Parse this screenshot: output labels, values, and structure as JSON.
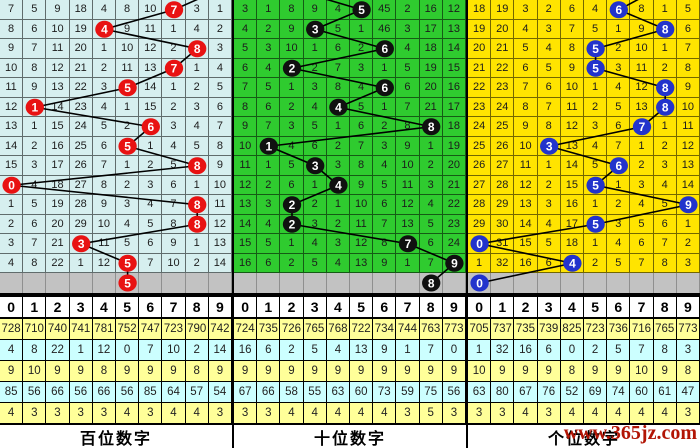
{
  "watermark": "www.365jz.com",
  "header_digits": [
    "0",
    "1",
    "2",
    "3",
    "4",
    "5",
    "6",
    "7",
    "8",
    "9"
  ],
  "colors": {
    "grid_line": "#000000",
    "gray_band": "#c2c2c2",
    "stats_yellow": "#ffff99",
    "stats_cyan": "#ccffff",
    "trend_line": "#000000",
    "circle_text": "#ffffff"
  },
  "chart_data": [
    {
      "type": "table",
      "title": "百位数字",
      "panel_id": "hundreds",
      "cell_bg": "#d6efef",
      "circle_color": "#e81212",
      "header": [
        "0",
        "1",
        "2",
        "3",
        "4",
        "5",
        "6",
        "7",
        "8",
        "9"
      ],
      "matrix": [
        [
          7,
          5,
          9,
          18,
          4,
          8,
          10,
          7,
          3,
          1
        ],
        [
          8,
          6,
          10,
          19,
          4,
          9,
          11,
          1,
          4,
          2
        ],
        [
          9,
          7,
          11,
          20,
          1,
          10,
          12,
          2,
          8,
          3
        ],
        [
          10,
          8,
          12,
          21,
          2,
          11,
          13,
          7,
          1,
          4
        ],
        [
          11,
          9,
          13,
          22,
          3,
          5,
          14,
          1,
          2,
          5
        ],
        [
          12,
          1,
          14,
          23,
          4,
          1,
          15,
          2,
          3,
          6
        ],
        [
          13,
          1,
          15,
          24,
          5,
          2,
          6,
          3,
          4,
          7
        ],
        [
          14,
          2,
          16,
          25,
          6,
          5,
          1,
          4,
          5,
          8
        ],
        [
          15,
          3,
          17,
          26,
          7,
          1,
          2,
          5,
          8,
          9
        ],
        [
          0,
          4,
          18,
          27,
          8,
          2,
          3,
          6,
          1,
          10
        ],
        [
          1,
          5,
          19,
          28,
          9,
          3,
          4,
          7,
          8,
          11
        ],
        [
          2,
          6,
          20,
          29,
          10,
          4,
          5,
          8,
          8,
          12
        ],
        [
          3,
          7,
          21,
          3,
          11,
          5,
          6,
          9,
          1,
          13
        ],
        [
          4,
          8,
          22,
          1,
          12,
          5,
          7,
          10,
          2,
          14
        ]
      ],
      "drawn_cols": [
        7,
        4,
        8,
        7,
        5,
        1,
        6,
        5,
        8,
        0,
        8,
        8,
        3,
        5
      ],
      "gray_circle_col": 5,
      "entry_point": [
        215,
        -8
      ],
      "stats": [
        [
          728,
          710,
          740,
          741,
          781,
          752,
          747,
          723,
          790,
          742
        ],
        [
          4,
          8,
          22,
          1,
          12,
          0,
          7,
          10,
          2,
          14
        ],
        [
          9,
          10,
          9,
          9,
          8,
          9,
          9,
          9,
          8,
          9
        ],
        [
          85,
          56,
          66,
          56,
          66,
          56,
          85,
          64,
          57,
          54
        ],
        [
          4,
          3,
          3,
          3,
          3,
          4,
          3,
          4,
          4,
          3
        ]
      ]
    },
    {
      "type": "table",
      "title": "十位数字",
      "panel_id": "tens",
      "cell_bg": "#2fcb2f",
      "circle_color": "#101010",
      "header": [
        "0",
        "1",
        "2",
        "3",
        "4",
        "5",
        "6",
        "7",
        "8",
        "9"
      ],
      "matrix": [
        [
          3,
          1,
          8,
          9,
          4,
          5,
          45,
          2,
          16,
          12
        ],
        [
          4,
          2,
          9,
          3,
          5,
          1,
          46,
          3,
          17,
          13
        ],
        [
          5,
          3,
          10,
          1,
          6,
          2,
          6,
          4,
          18,
          14
        ],
        [
          6,
          4,
          2,
          2,
          7,
          3,
          1,
          5,
          19,
          15
        ],
        [
          7,
          5,
          1,
          3,
          8,
          4,
          6,
          6,
          20,
          16
        ],
        [
          8,
          6,
          2,
          4,
          4,
          5,
          1,
          7,
          21,
          17
        ],
        [
          9,
          7,
          3,
          5,
          1,
          6,
          2,
          8,
          8,
          18
        ],
        [
          10,
          1,
          4,
          6,
          2,
          7,
          3,
          9,
          1,
          19
        ],
        [
          11,
          1,
          5,
          3,
          3,
          8,
          4,
          10,
          2,
          20
        ],
        [
          12,
          2,
          6,
          1,
          4,
          9,
          5,
          11,
          3,
          21
        ],
        [
          13,
          3,
          2,
          2,
          1,
          10,
          6,
          12,
          4,
          22
        ],
        [
          14,
          4,
          2,
          3,
          2,
          11,
          7,
          13,
          5,
          23
        ],
        [
          15,
          5,
          1,
          4,
          3,
          12,
          8,
          7,
          6,
          24
        ],
        [
          16,
          6,
          2,
          5,
          4,
          13,
          9,
          1,
          7,
          9
        ]
      ],
      "drawn_cols": [
        5,
        3,
        6,
        2,
        6,
        4,
        8,
        1,
        3,
        4,
        2,
        2,
        7,
        9
      ],
      "gray_circle_col": 8,
      "entry_point": [
        68,
        -8
      ],
      "stats": [
        [
          724,
          735,
          726,
          765,
          768,
          722,
          734,
          744,
          763,
          773
        ],
        [
          16,
          6,
          2,
          5,
          4,
          13,
          9,
          1,
          7,
          0
        ],
        [
          9,
          9,
          9,
          9,
          9,
          9,
          9,
          9,
          9,
          9
        ],
        [
          67,
          66,
          58,
          55,
          63,
          60,
          73,
          59,
          75,
          56
        ],
        [
          3,
          3,
          4,
          4,
          4,
          4,
          4,
          3,
          5,
          3
        ]
      ]
    },
    {
      "type": "table",
      "title": "个位数字",
      "panel_id": "units",
      "cell_bg": "#ffe400",
      "circle_color": "#2233cc",
      "header": [
        "0",
        "1",
        "2",
        "3",
        "4",
        "5",
        "6",
        "7",
        "8",
        "9"
      ],
      "matrix": [
        [
          18,
          19,
          3,
          2,
          6,
          4,
          6,
          8,
          1,
          5
        ],
        [
          19,
          20,
          4,
          3,
          7,
          5,
          1,
          9,
          8,
          6
        ],
        [
          20,
          21,
          5,
          4,
          8,
          5,
          2,
          10,
          1,
          7
        ],
        [
          21,
          22,
          6,
          5,
          9,
          5,
          3,
          11,
          2,
          8
        ],
        [
          22,
          23,
          7,
          6,
          10,
          1,
          4,
          12,
          8,
          9
        ],
        [
          23,
          24,
          8,
          7,
          11,
          2,
          5,
          13,
          8,
          10
        ],
        [
          24,
          25,
          9,
          8,
          12,
          3,
          6,
          7,
          1,
          11
        ],
        [
          25,
          26,
          10,
          3,
          13,
          4,
          7,
          1,
          2,
          12
        ],
        [
          26,
          27,
          11,
          1,
          14,
          5,
          6,
          2,
          3,
          13
        ],
        [
          27,
          28,
          12,
          2,
          15,
          5,
          1,
          3,
          4,
          14
        ],
        [
          28,
          29,
          13,
          3,
          16,
          1,
          2,
          4,
          5,
          9
        ],
        [
          29,
          30,
          14,
          4,
          17,
          5,
          3,
          5,
          6,
          1
        ],
        [
          0,
          31,
          15,
          5,
          18,
          1,
          4,
          6,
          7,
          2
        ],
        [
          1,
          32,
          16,
          6,
          4,
          2,
          5,
          7,
          8,
          3
        ]
      ],
      "drawn_cols": [
        6,
        8,
        5,
        5,
        8,
        8,
        7,
        3,
        6,
        5,
        9,
        5,
        0,
        4
      ],
      "gray_circle_col": 0,
      "entry_point": [
        185,
        -8
      ],
      "stats": [
        [
          705,
          737,
          735,
          739,
          825,
          723,
          736,
          716,
          765,
          773
        ],
        [
          1,
          32,
          16,
          6,
          0,
          2,
          5,
          7,
          8,
          3
        ],
        [
          10,
          9,
          9,
          9,
          8,
          9,
          9,
          10,
          9,
          8
        ],
        [
          63,
          80,
          67,
          76,
          52,
          69,
          74,
          60,
          61,
          47
        ],
        [
          3,
          3,
          4,
          3,
          4,
          4,
          4,
          4,
          4,
          3
        ]
      ]
    }
  ]
}
